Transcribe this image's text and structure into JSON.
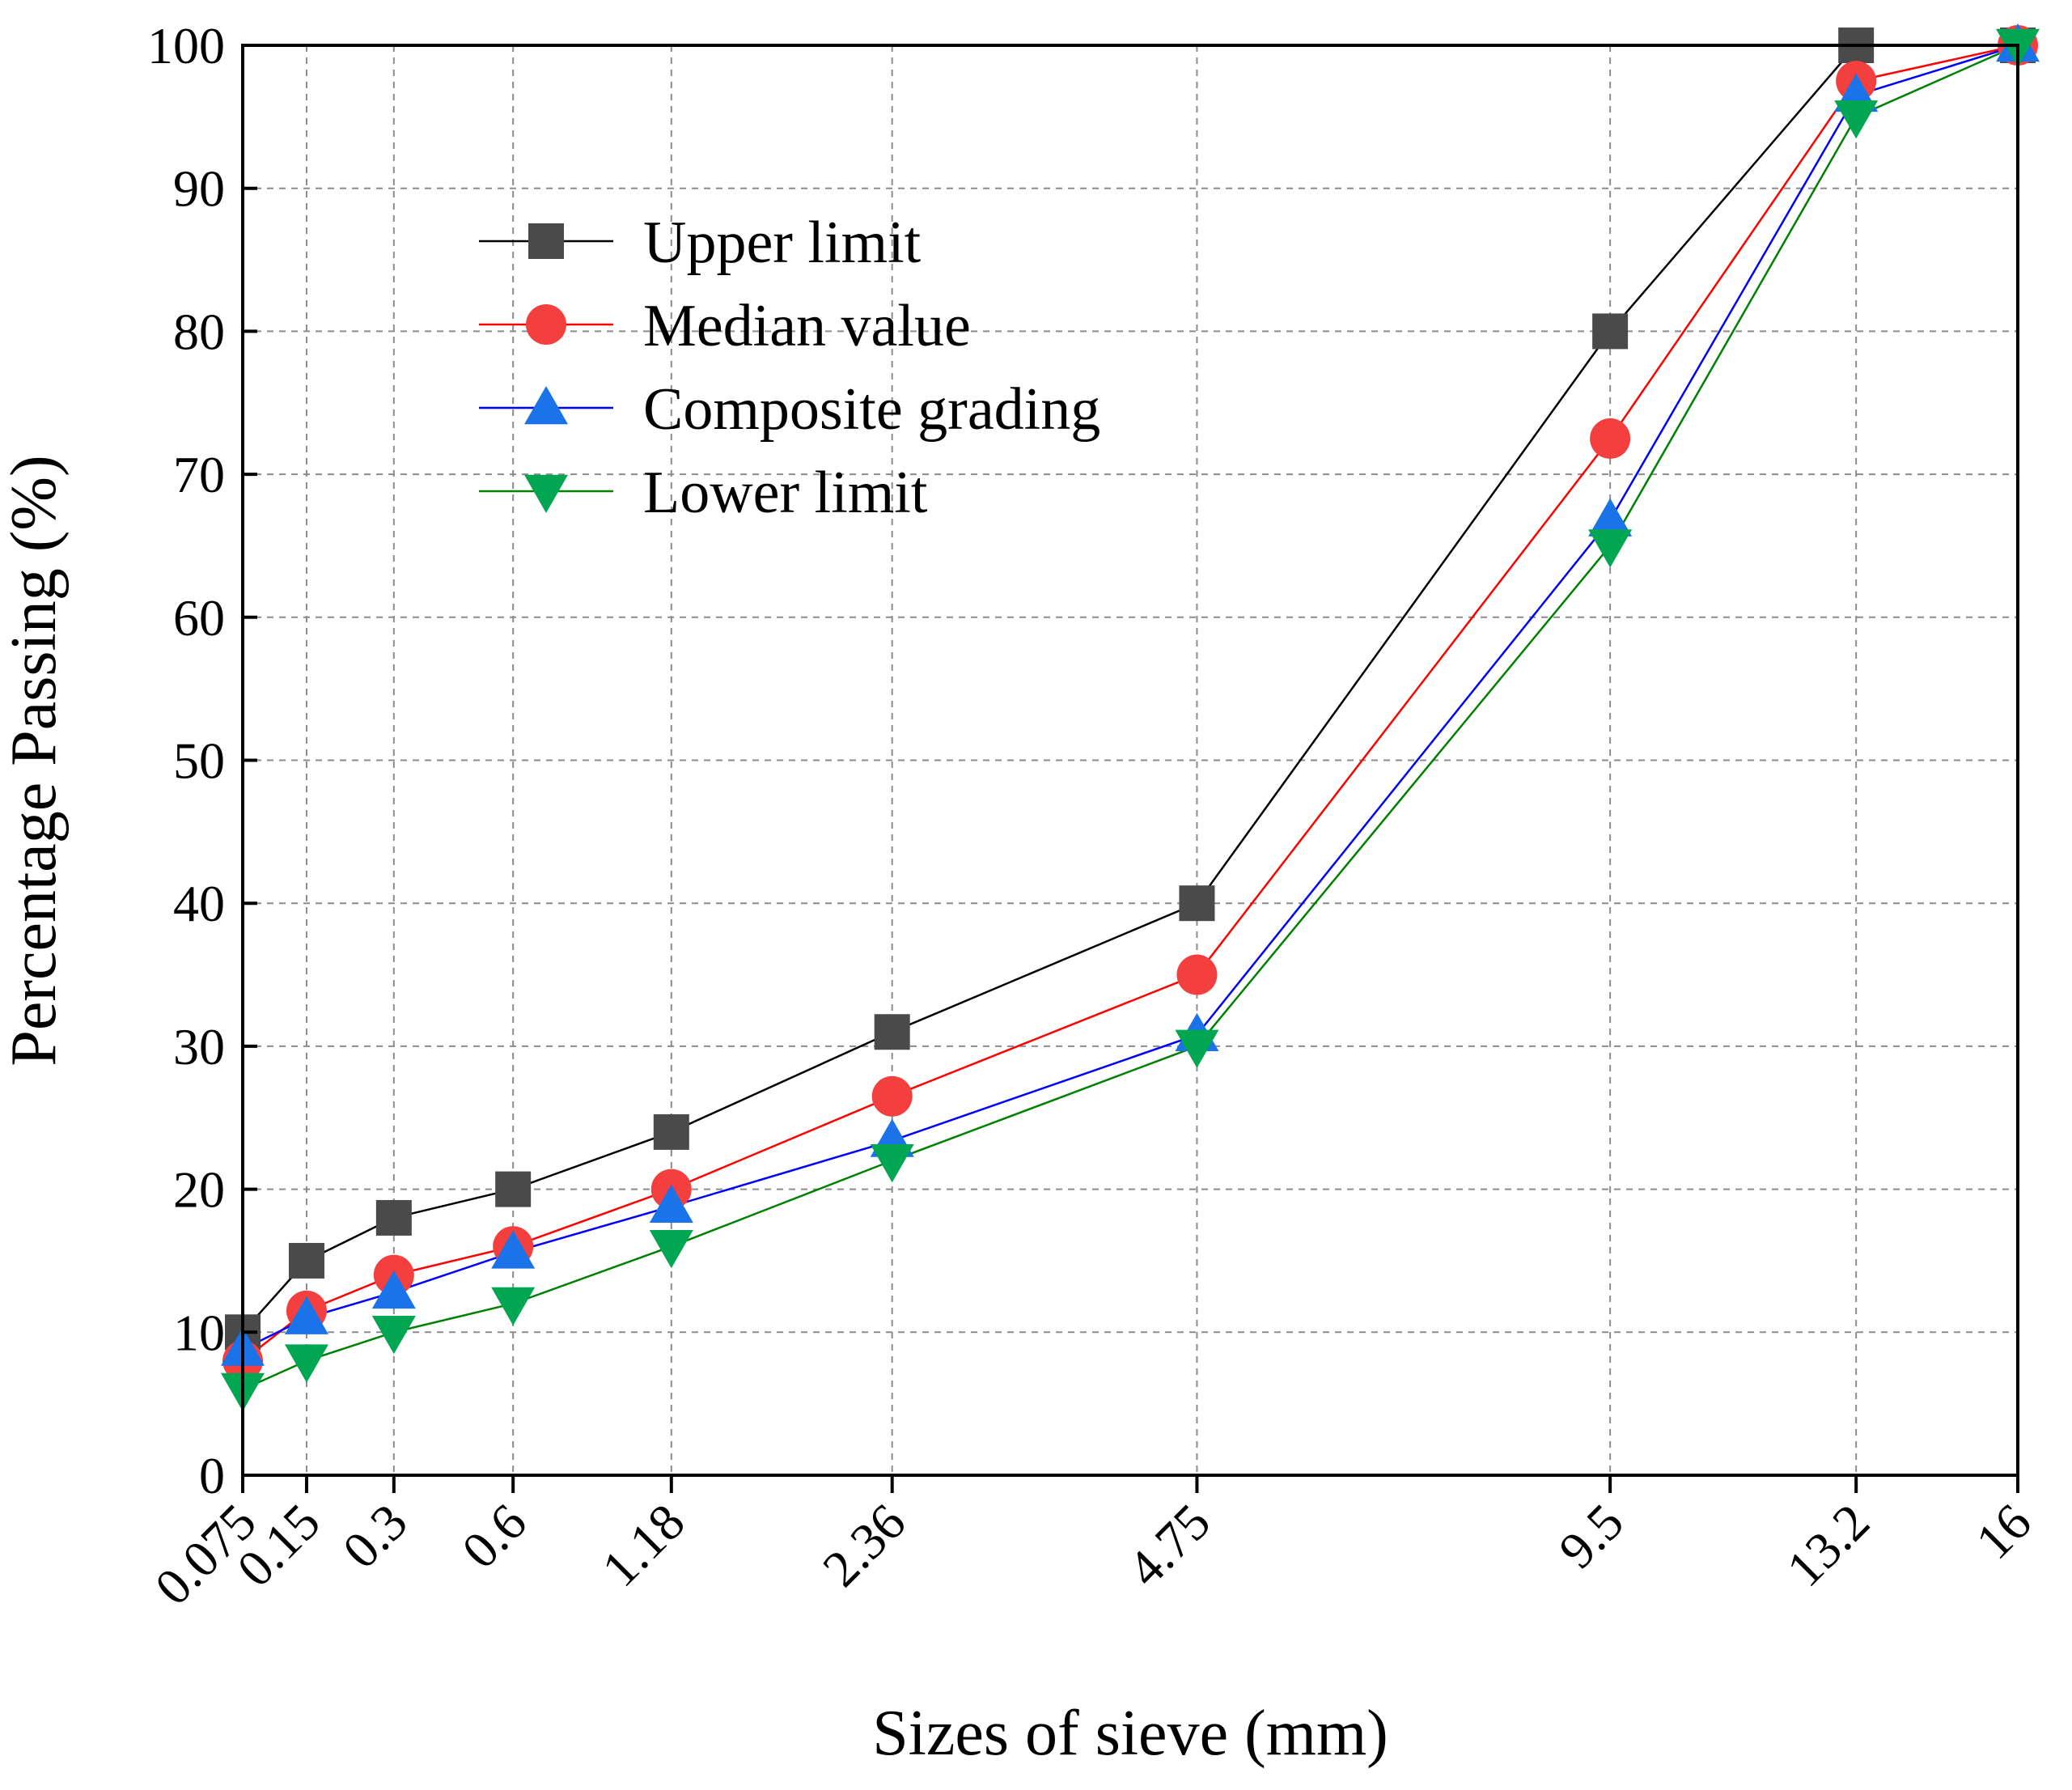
{
  "chart_data": {
    "type": "line",
    "title": "",
    "xlabel": "Sizes of sieve (mm)",
    "ylabel": "Percentage Passing (%)",
    "x_scale": "power-0.45",
    "xlim": [
      0.075,
      16
    ],
    "ylim": [
      0,
      100
    ],
    "grid": true,
    "legend_position": "top-left",
    "categories": [
      "0.075",
      "0.15",
      "0.3",
      "0.6",
      "1.18",
      "2.36",
      "4.75",
      "9.5",
      "13.2",
      "16"
    ],
    "x": [
      0.075,
      0.15,
      0.3,
      0.6,
      1.18,
      2.36,
      4.75,
      9.5,
      13.2,
      16
    ],
    "y_ticks": [
      0,
      10,
      20,
      30,
      40,
      50,
      60,
      70,
      80,
      90,
      100
    ],
    "y_tick_labels": [
      "0",
      "10",
      "20",
      "30",
      "40",
      "50",
      "60",
      "70",
      "80",
      "90",
      "100"
    ],
    "series": [
      {
        "name": "Upper limit",
        "color": "#000000",
        "marker_color": "#4a4a4a",
        "marker": "square",
        "values": [
          10,
          15,
          18,
          20,
          24,
          31,
          40,
          80,
          100,
          100
        ]
      },
      {
        "name": "Median value",
        "color": "#ff0000",
        "marker_color": "#f43f3f",
        "marker": "circle",
        "values": [
          8,
          11.5,
          14,
          16,
          20,
          26.5,
          35,
          72.5,
          97.5,
          100
        ]
      },
      {
        "name": "Composite grading",
        "color": "#0000ff",
        "marker_color": "#1a73e8",
        "marker": "triangle-up",
        "values": [
          8.8,
          11,
          12.8,
          15.6,
          18.8,
          23.4,
          30.8,
          66.8,
          96.5,
          100
        ]
      },
      {
        "name": "Lower limit",
        "color": "#008000",
        "marker_color": "#00a651",
        "marker": "triangle-down",
        "values": [
          6,
          8,
          10,
          12,
          16,
          22,
          30,
          65,
          95,
          100
        ]
      }
    ]
  }
}
